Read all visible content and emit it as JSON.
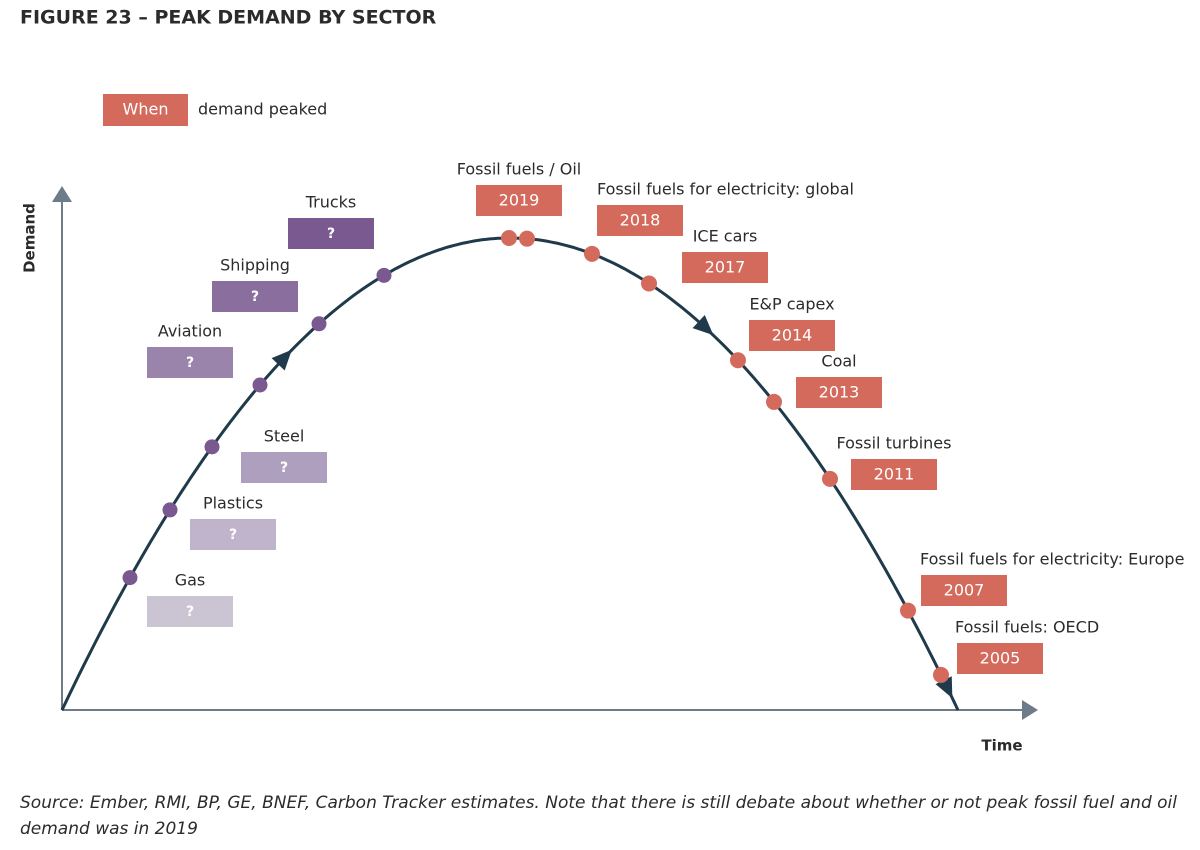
{
  "title": "FIGURE 23 – PEAK DEMAND BY SECTOR",
  "legend": {
    "box": "When",
    "text": "demand peaked"
  },
  "axes": {
    "y": "Demand",
    "x": "Time"
  },
  "rising": [
    {
      "label": "Gas",
      "box": "?"
    },
    {
      "label": "Plastics",
      "box": "?"
    },
    {
      "label": "Steel",
      "box": "?"
    },
    {
      "label": "Aviation",
      "box": "?"
    },
    {
      "label": "Shipping",
      "box": "?"
    },
    {
      "label": "Trucks",
      "box": "?"
    }
  ],
  "peaked": [
    {
      "label": "Fossil fuels / Oil",
      "box": "2019"
    },
    {
      "label": "Fossil fuels for electricity: global",
      "box": "2018"
    },
    {
      "label": "ICE cars",
      "box": "2017"
    },
    {
      "label": "E&P capex",
      "box": "2014"
    },
    {
      "label": "Coal",
      "box": "2013"
    },
    {
      "label": "Fossil turbines",
      "box": "2011"
    },
    {
      "label": "Fossil fuels for electricity: Europe",
      "box": "2007"
    },
    {
      "label": "Fossil fuels: OECD",
      "box": "2005"
    }
  ],
  "source": "Source: Ember, RMI, BP, GE, BNEF,  Carbon Tracker estimates. Note that there is still debate about whether or not peak fossil fuel and oil demand was in 2019"
}
